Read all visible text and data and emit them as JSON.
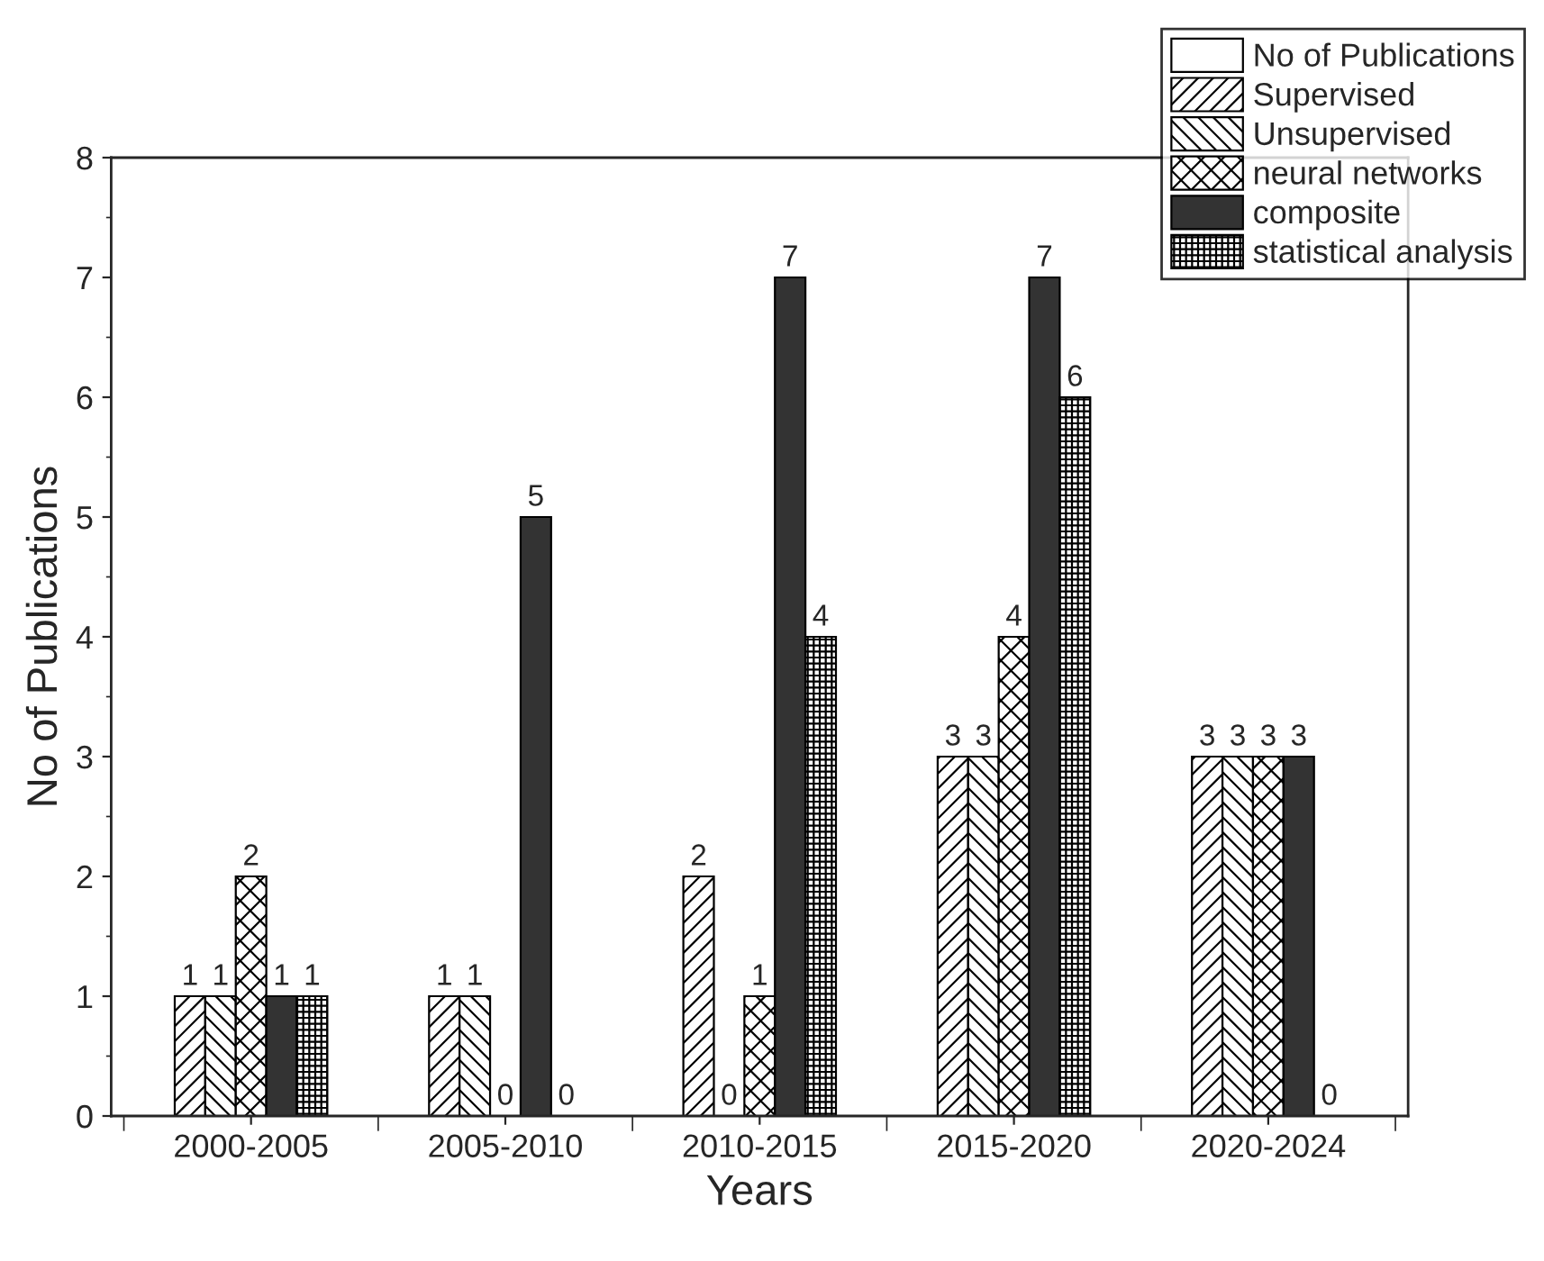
{
  "chart_data": {
    "type": "bar",
    "xlabel": "Years",
    "ylabel": "No of Publications",
    "categories": [
      "2000-2005",
      "2005-2010",
      "2010-2015",
      "2015-2020",
      "2020-2024"
    ],
    "series": [
      {
        "name": "No of Publications",
        "color": "#ffffff",
        "values": [
          null,
          null,
          null,
          null,
          null
        ]
      },
      {
        "name": "Supervised",
        "color": "#000000",
        "values": [
          1,
          1,
          2,
          3,
          3
        ]
      },
      {
        "name": "Unsupervised",
        "color": "#000000",
        "values": [
          1,
          1,
          0,
          3,
          3
        ]
      },
      {
        "name": "neural networks",
        "color": "#000000",
        "values": [
          2,
          0,
          1,
          4,
          3
        ]
      },
      {
        "name": "composite",
        "color": "#333333",
        "values": [
          1,
          5,
          7,
          7,
          3
        ]
      },
      {
        "name": "statistical analysis",
        "color": "#000000",
        "values": [
          1,
          0,
          4,
          6,
          0
        ]
      }
    ],
    "ylim": [
      0,
      8
    ],
    "yticks": [
      0,
      1,
      2,
      3,
      4,
      5,
      6,
      7,
      8
    ],
    "data_labels": true,
    "grid": false,
    "legend": "top right"
  }
}
